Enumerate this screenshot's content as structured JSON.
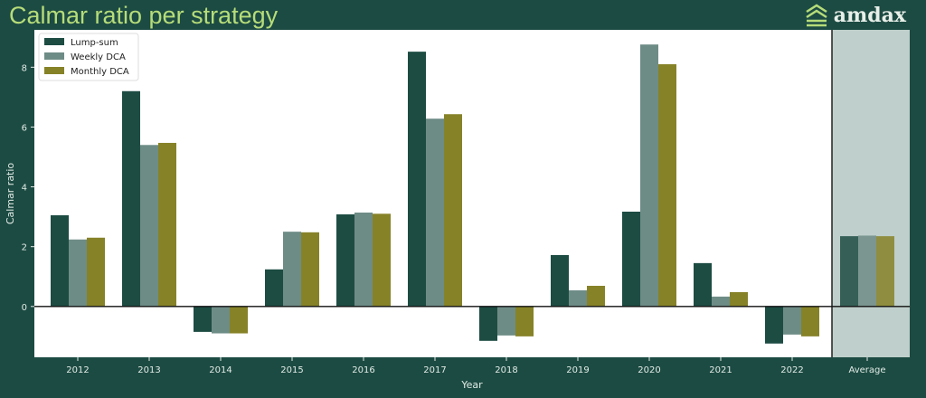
{
  "header": {
    "title": "Calmar ratio per strategy",
    "logo_text": "amdax"
  },
  "colors": {
    "background": "#1c4b43",
    "title": "#b6dc79",
    "average_band": "#bfcfcb"
  },
  "chart_data": {
    "type": "bar",
    "title": "Calmar ratio per strategy",
    "xlabel": "Year",
    "ylabel": "Calmar ratio",
    "ylim": [
      -1.7,
      9.25
    ],
    "yticks": [
      0,
      2,
      4,
      6,
      8
    ],
    "legend_position": "top-left",
    "categories": [
      "2012",
      "2013",
      "2014",
      "2015",
      "2016",
      "2017",
      "2018",
      "2019",
      "2020",
      "2021",
      "2022",
      "Average"
    ],
    "highlighted_category": "Average",
    "series": [
      {
        "name": "Lump-sum",
        "color": "#1d4c43",
        "values": [
          3.05,
          7.2,
          -0.85,
          1.24,
          3.08,
          8.52,
          -1.15,
          1.72,
          3.17,
          1.45,
          -1.24,
          2.35
        ]
      },
      {
        "name": "Weekly DCA",
        "color": "#6e8c86",
        "values": [
          2.24,
          5.4,
          -0.9,
          2.5,
          3.14,
          6.28,
          -0.97,
          0.54,
          8.76,
          0.33,
          -0.94,
          2.37
        ]
      },
      {
        "name": "Monthly DCA",
        "color": "#868228",
        "values": [
          2.3,
          5.47,
          -0.9,
          2.48,
          3.1,
          6.43,
          -1.0,
          0.69,
          8.1,
          0.48,
          -1.0,
          2.35
        ]
      }
    ]
  }
}
